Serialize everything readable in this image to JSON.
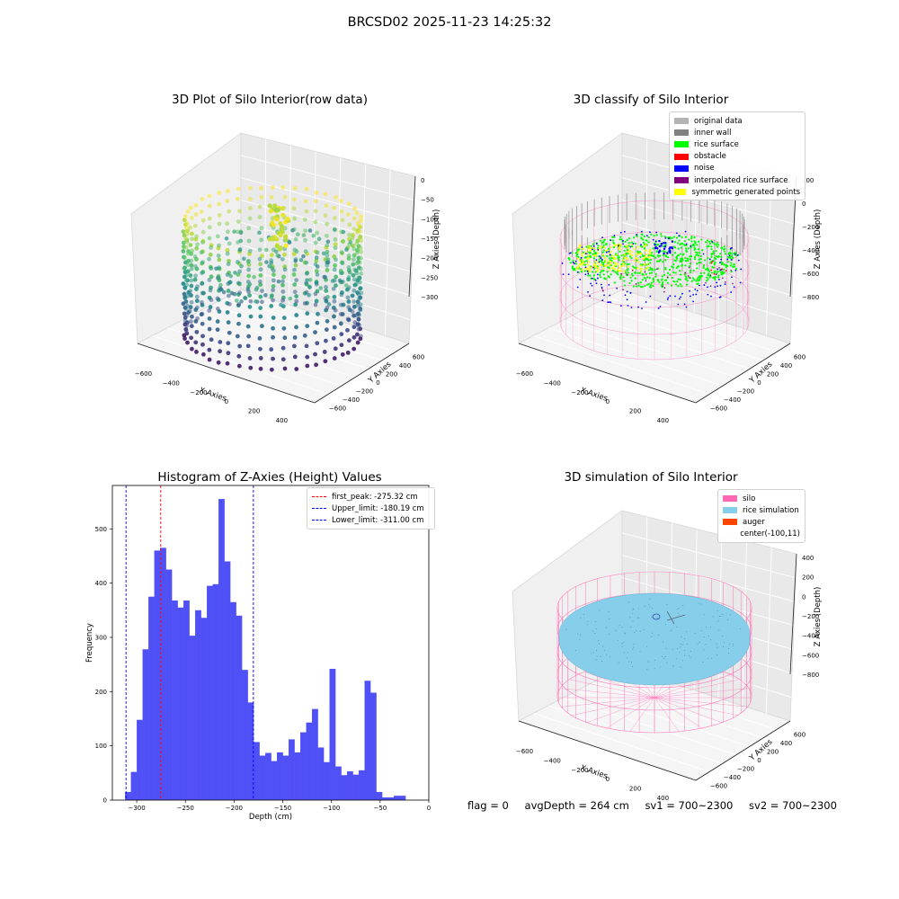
{
  "suptitle": "BRCSD02 2025-11-23 14:25:32",
  "colors": {
    "hist_bar": "#5050f7",
    "first_peak_line": "#ff0000",
    "limit_line": "#0000ff",
    "original": "#b3b3b3",
    "inner_wall": "#808080",
    "rice_surface": "#00ff00",
    "obstacle": "#ff0000",
    "noise": "#0000ff",
    "interpolated": "#800080",
    "symmetric": "#ffff00",
    "silo": "#ff69b4",
    "rice_sim": "#87ceeb",
    "auger": "#ff4500"
  },
  "chart_data": [
    {
      "type": "scatter",
      "projection": "3d",
      "title": "3D Plot of Silo Interior(row data)",
      "xlabel": "X Axies",
      "ylabel": "Y Axies",
      "zlabel": "Z Axies (Depth)",
      "x_ticks": [
        "−600",
        "−400",
        "−200",
        "0",
        "200",
        "400"
      ],
      "y_ticks": [
        "−600",
        "−400",
        "−200",
        "0",
        "200",
        "400",
        "600"
      ],
      "z_ticks": [
        "0",
        "−50",
        "−100",
        "−150",
        "−200",
        "−250",
        "−300"
      ],
      "colormap": "viridis",
      "xlim": [
        -700,
        500
      ],
      "ylim": [
        -650,
        650
      ],
      "zlim": [
        -330,
        0
      ]
    },
    {
      "type": "scatter",
      "projection": "3d",
      "title": "3D classify of Silo Interior",
      "xlabel": "X Axies",
      "ylabel": "Y Axies",
      "zlabel": "Z Axies (Depth)",
      "x_ticks": [
        "−600",
        "−400",
        "−200",
        "0",
        "200",
        "400"
      ],
      "y_ticks": [
        "−600",
        "−400",
        "−200",
        "0",
        "200",
        "400",
        "600"
      ],
      "z_ticks": [
        "200",
        "0",
        "−200",
        "−400",
        "−600",
        "−800"
      ],
      "legend": [
        "original data",
        "inner wall",
        "rice surface",
        "obstacle",
        "noise",
        "interpolated rice surface",
        "symmetric generated points"
      ],
      "legend_position": "top-right"
    },
    {
      "type": "bar",
      "title": "Histogram of Z-Axies (Height) Values",
      "xlabel": "Depth (cm)",
      "ylabel": "Frequency",
      "xlim": [
        -325,
        0
      ],
      "ylim": [
        0,
        580
      ],
      "x_ticks": [
        -300,
        -250,
        -200,
        -150,
        -100,
        -50,
        0
      ],
      "y_ticks": [
        0,
        100,
        200,
        300,
        400,
        500
      ],
      "bin_start": -312,
      "bin_width": 6.0,
      "values": [
        15,
        52,
        148,
        278,
        375,
        460,
        465,
        425,
        368,
        355,
        368,
        303,
        350,
        336,
        395,
        398,
        555,
        440,
        365,
        340,
        240,
        180,
        107,
        82,
        87,
        72,
        88,
        82,
        112,
        88,
        125,
        143,
        168,
        97,
        70,
        242,
        62,
        46,
        53,
        47,
        55,
        220,
        198,
        15,
        5,
        5,
        8,
        8
      ],
      "vlines": [
        {
          "x": -275.32,
          "label": "first_peak: -275.32 cm",
          "color": "#ff0000"
        },
        {
          "x": -180.19,
          "label": "Upper_limit: -180.19 cm",
          "color": "#0000ff"
        },
        {
          "x": -311.0,
          "label": "Lower_limit: -311.00 cm",
          "color": "#0000ff"
        }
      ],
      "legend_position": "top-right"
    },
    {
      "type": "surface",
      "projection": "3d",
      "title": "3D simulation of Silo Interior",
      "xlabel": "X Axies",
      "ylabel": "Y Axies",
      "zlabel": "Z Axies (Depth)",
      "x_ticks": [
        "−600",
        "−400",
        "−200",
        "0",
        "200",
        "400"
      ],
      "y_ticks": [
        "−600",
        "−400",
        "−200",
        "0",
        "200",
        "400",
        "600"
      ],
      "z_ticks": [
        "400",
        "200",
        "0",
        "−200",
        "−400",
        "−600",
        "−800"
      ],
      "legend": [
        "silo",
        "rice simulation",
        "auger",
        "center(-100,11)"
      ],
      "legend_position": "top-right"
    }
  ],
  "footer": {
    "flag": "flag = 0",
    "avg": "avgDepth = 264 cm",
    "sv1": "sv1 = 700~2300",
    "sv2": "sv2 = 700~2300"
  }
}
